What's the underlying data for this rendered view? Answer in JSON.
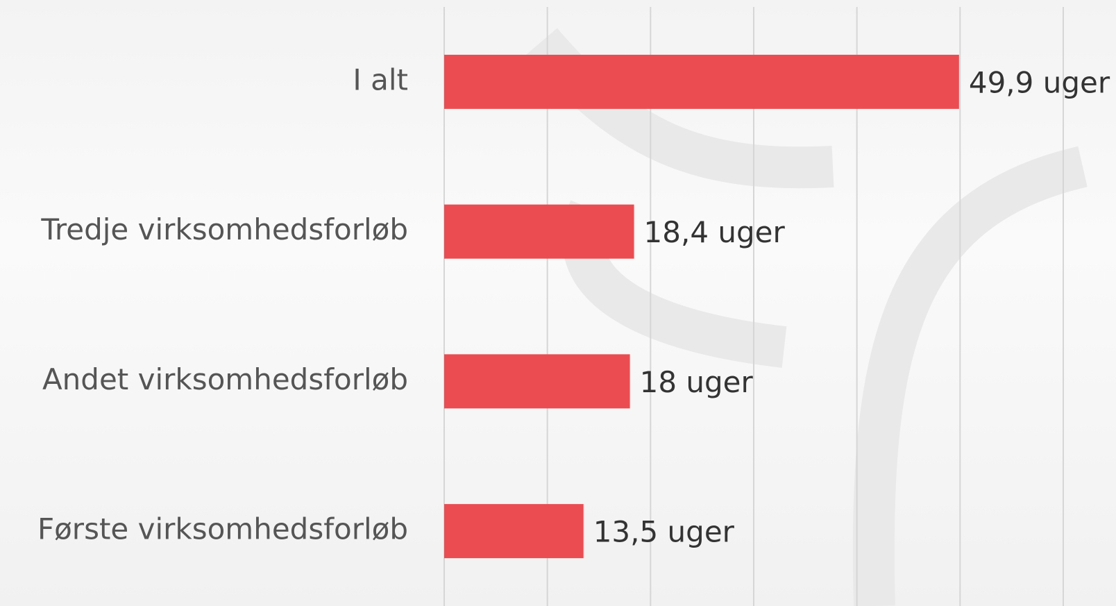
{
  "chart_data": {
    "type": "bar",
    "orientation": "horizontal",
    "categories": [
      "I alt",
      "Tredje virksomhedsforløb",
      "Andet virksomhedsforløb",
      "Første virksomhedsforløb"
    ],
    "values": [
      49.9,
      18.4,
      18,
      13.5
    ],
    "value_labels": [
      "49,9 uger",
      "18,4 uger",
      "18 uger",
      "13,5 uger"
    ],
    "color": "#ea4c51",
    "xlim": [
      0,
      60
    ],
    "xticks": [
      0,
      10,
      20,
      30,
      40,
      50,
      60
    ],
    "grid": true
  }
}
